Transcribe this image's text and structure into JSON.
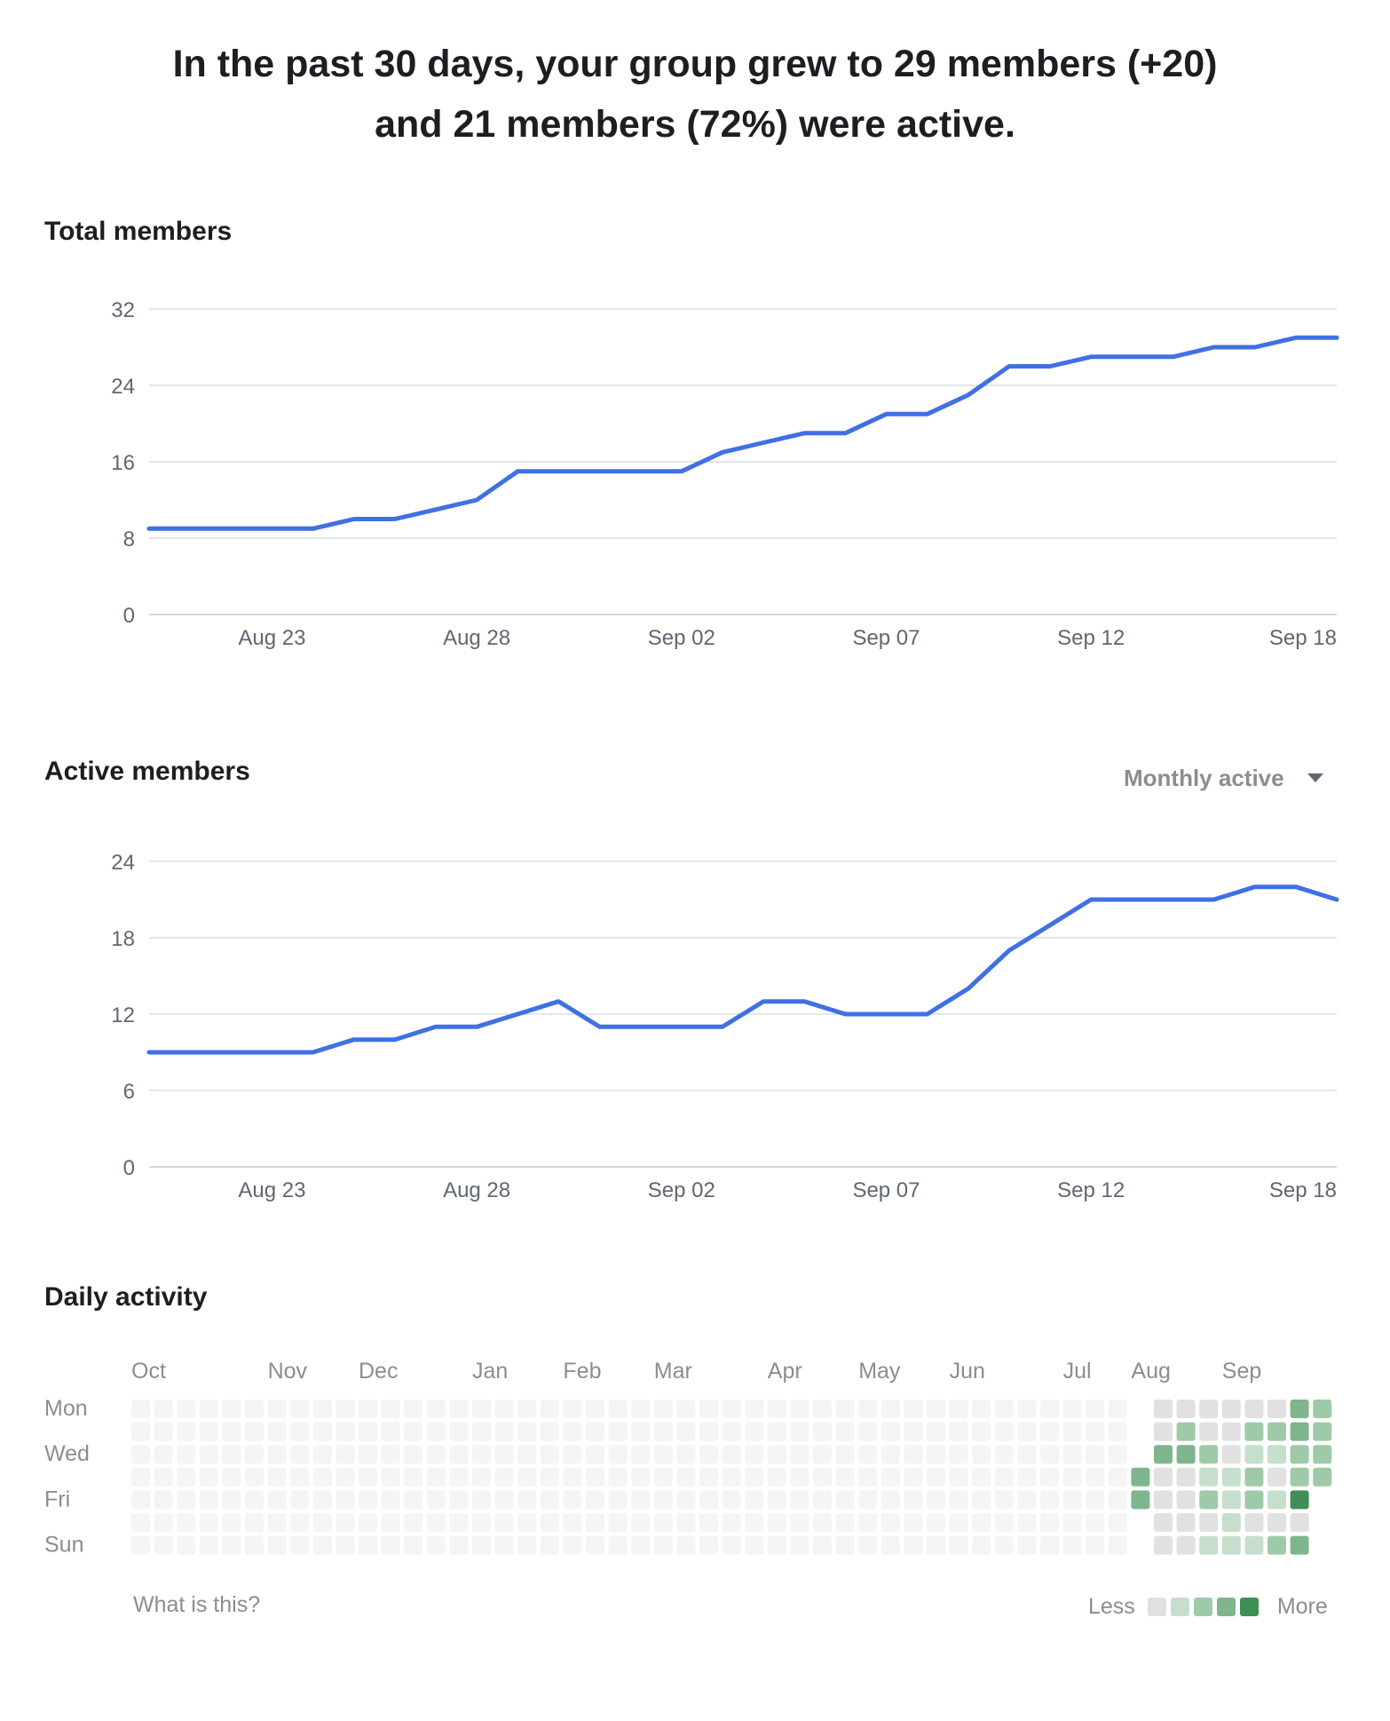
{
  "header": {
    "line1": "In the past 30 days, your group grew to 29 members (+20)",
    "line2": "and 21 members (72%) were active."
  },
  "total_members": {
    "title": "Total members"
  },
  "active_members": {
    "title": "Active members",
    "dropdown": {
      "selected": "Monthly active"
    }
  },
  "daily_activity": {
    "title": "Daily activity",
    "help_link": "What is this?",
    "legend": {
      "less": "Less",
      "more": "More"
    }
  },
  "colors": {
    "line": "#4070e4",
    "grid": "#dadde1",
    "axis_text": "#606770",
    "heat_empty": "#f5f5f5",
    "heat_levels": [
      "#e1e1e1",
      "#c6dfcc",
      "#9fcaa8",
      "#7fb58d",
      "#3f8f57"
    ]
  },
  "chart_data": [
    {
      "type": "line",
      "title": "Total members",
      "x_tick_labels": [
        "Aug 23",
        "Aug 28",
        "Sep 02",
        "Sep 07",
        "Sep 12",
        "Sep 18"
      ],
      "x_tick_days": [
        3,
        8,
        13,
        18,
        23,
        28.5
      ],
      "ylim": [
        0,
        32
      ],
      "y_ticks": [
        0,
        8,
        16,
        24,
        32
      ],
      "grid": true,
      "series": [
        {
          "color": "#4070e4",
          "x": [
            0,
            1,
            2,
            3,
            4,
            5,
            6,
            7,
            8,
            9,
            10,
            11,
            12,
            13,
            14,
            15,
            16,
            17,
            18,
            19,
            20,
            21,
            22,
            23,
            24,
            25,
            26,
            27,
            28,
            29
          ],
          "values": [
            9,
            9,
            9,
            9,
            9,
            10,
            10,
            11,
            12,
            15,
            15,
            15,
            15,
            15,
            17,
            18,
            19,
            19,
            21,
            21,
            23,
            26,
            26,
            27,
            27,
            27,
            28,
            28,
            29,
            29
          ]
        }
      ]
    },
    {
      "type": "line",
      "title": "Active members",
      "x_tick_labels": [
        "Aug 23",
        "Aug 28",
        "Sep 02",
        "Sep 07",
        "Sep 12",
        "Sep 18"
      ],
      "x_tick_days": [
        3,
        8,
        13,
        18,
        23,
        28.5
      ],
      "ylim": [
        0,
        24
      ],
      "y_ticks": [
        0,
        6,
        12,
        18,
        24
      ],
      "grid": true,
      "series": [
        {
          "color": "#4070e4",
          "x": [
            0,
            1,
            2,
            3,
            4,
            5,
            6,
            7,
            8,
            9,
            10,
            11,
            12,
            13,
            14,
            15,
            16,
            17,
            18,
            19,
            20,
            21,
            22,
            23,
            24,
            25,
            26,
            27,
            28,
            29
          ],
          "values": [
            9,
            9,
            9,
            9,
            9,
            10,
            10,
            11,
            11,
            12,
            13,
            11,
            11,
            11,
            11,
            13,
            13,
            12,
            12,
            12,
            14,
            17,
            19,
            21,
            21,
            21,
            21,
            22,
            22,
            21
          ]
        }
      ]
    },
    {
      "type": "heatmap",
      "title": "Daily activity",
      "row_labels": [
        "Mon",
        "Wed",
        "Fri",
        "Sun"
      ],
      "row_label_days": [
        0,
        2,
        4,
        6
      ],
      "month_labels": [
        "Oct",
        "Nov",
        "Dec",
        "Jan",
        "Feb",
        "Mar",
        "Apr",
        "May",
        "Jun",
        "Jul",
        "Aug",
        "Sep"
      ],
      "month_label_weeks": [
        0,
        6,
        10,
        15,
        19,
        23,
        28,
        32,
        36,
        41,
        44,
        48
      ],
      "weeks": 53,
      "rows": 7,
      "level_scale": "0 = no data, 1-5 = Less to More",
      "active_weeks": [
        [
          0,
          0,
          0,
          4,
          4,
          0,
          0
        ],
        [
          1,
          1,
          4,
          1,
          1,
          1,
          1
        ],
        [
          1,
          3,
          4,
          1,
          1,
          1,
          1
        ],
        [
          1,
          1,
          3,
          2,
          3,
          1,
          2
        ],
        [
          1,
          1,
          1,
          2,
          2,
          2,
          2
        ],
        [
          1,
          3,
          2,
          3,
          3,
          1,
          2
        ],
        [
          1,
          3,
          2,
          1,
          2,
          1,
          3
        ],
        [
          4,
          4,
          3,
          3,
          5,
          1,
          4
        ],
        [
          3,
          3,
          3,
          3,
          0,
          0,
          0
        ]
      ],
      "active_start_week": 44
    }
  ]
}
